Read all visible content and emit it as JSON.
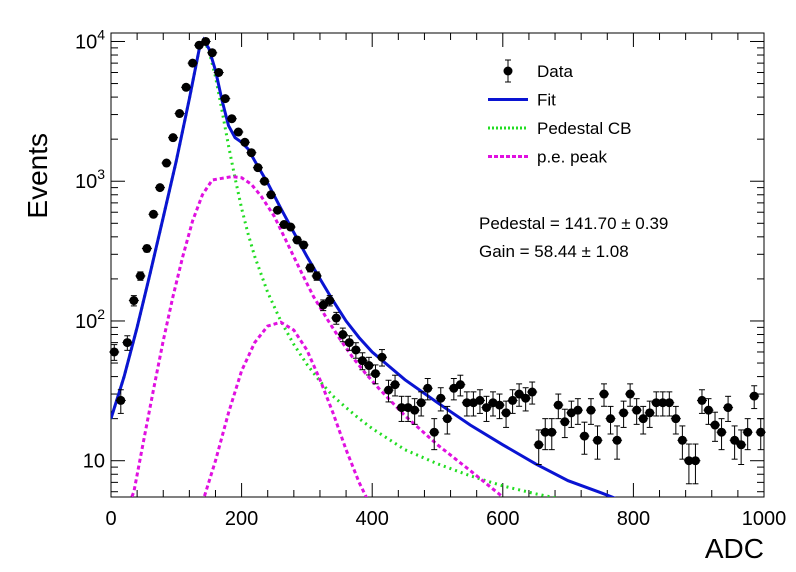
{
  "chart_data": {
    "type": "scatter",
    "title": "",
    "xlabel": "ADC",
    "ylabel": "Events",
    "xlim": [
      0,
      1000
    ],
    "ylim": [
      5.5,
      11500
    ],
    "yscale": "log",
    "grid": false,
    "legend_position": "top-right",
    "x_ticks": [
      "0",
      "200",
      "400",
      "600",
      "800",
      "1000"
    ],
    "y_ticks": [
      {
        "base": "10",
        "exp": ""
      },
      {
        "base": "10",
        "exp": "2"
      },
      {
        "base": "10",
        "exp": "3"
      },
      {
        "base": "10",
        "exp": "4"
      }
    ],
    "legend": [
      {
        "label": "Data",
        "style": "marker",
        "color": "#000000"
      },
      {
        "label": "Fit",
        "style": "line",
        "color": "#0a14d2"
      },
      {
        "label": "Pedestal CB",
        "style": "dotted",
        "color": "#22dd22"
      },
      {
        "label": "p.e. peak",
        "style": "dashed",
        "color": "#e010e0"
      }
    ],
    "annotations": [
      "Pedestal = 141.70 ± 0.39",
      "Gain = 58.44 ± 1.08"
    ],
    "pedestal_mean": 141.7,
    "pedestal_mean_error": 0.39,
    "gain": 58.44,
    "gain_error": 1.08,
    "data": {
      "bin_width": 10,
      "x": [
        5,
        15,
        25,
        35,
        45,
        55,
        65,
        75,
        85,
        95,
        105,
        115,
        125,
        135,
        145,
        155,
        165,
        175,
        185,
        195,
        205,
        215,
        225,
        235,
        245,
        255,
        265,
        275,
        285,
        295,
        305,
        315,
        325,
        335,
        345,
        355,
        365,
        375,
        385,
        395,
        405,
        415,
        425,
        435,
        445,
        455,
        465,
        475,
        485,
        495,
        505,
        515,
        525,
        535,
        545,
        555,
        565,
        575,
        585,
        595,
        605,
        615,
        625,
        635,
        645,
        655,
        665,
        675,
        685,
        695,
        705,
        715,
        725,
        735,
        745,
        755,
        765,
        775,
        785,
        795,
        805,
        815,
        825,
        835,
        845,
        855,
        865,
        875,
        885,
        895,
        905,
        915,
        925,
        935,
        945,
        955,
        965,
        975,
        985,
        995
      ],
      "y": [
        60,
        27,
        70,
        140,
        210,
        330,
        580,
        900,
        1350,
        2050,
        3050,
        4700,
        7000,
        9400,
        10000,
        8300,
        6000,
        3900,
        2800,
        2250,
        1900,
        1600,
        1250,
        1000,
        800,
        620,
        490,
        470,
        380,
        350,
        240,
        210,
        130,
        140,
        105,
        80,
        70,
        62,
        52,
        48,
        42,
        55,
        32,
        35,
        24,
        24,
        23,
        26,
        33,
        16,
        28,
        20,
        33,
        35,
        26,
        26,
        27,
        24,
        26,
        25,
        22,
        27,
        30,
        28,
        31,
        13,
        16,
        16,
        25,
        19,
        22,
        23,
        15,
        23,
        14,
        30,
        20,
        14,
        22,
        30,
        23,
        20,
        22,
        26,
        26,
        26,
        20,
        14,
        10,
        10,
        27,
        23,
        18,
        16,
        24,
        14,
        13,
        16,
        29,
        16
      ]
    },
    "series": [
      {
        "name": "Fit",
        "x": [
          0,
          20,
          40,
          60,
          80,
          100,
          120,
          135,
          142,
          150,
          160,
          170,
          180,
          190,
          200,
          210,
          220,
          240,
          260,
          280,
          300,
          320,
          340,
          360,
          380,
          400,
          450,
          500,
          550,
          600,
          650,
          700,
          750,
          800
        ],
        "y": [
          20,
          40,
          90,
          220,
          550,
          1400,
          3900,
          8800,
          10300,
          8900,
          6200,
          3800,
          2500,
          2050,
          1900,
          1700,
          1400,
          970,
          640,
          430,
          290,
          200,
          140,
          100,
          76,
          60,
          38,
          26,
          18,
          13,
          9.5,
          7.2,
          5.9,
          4.8
        ]
      },
      {
        "name": "Pedestal CB",
        "x": [
          0,
          20,
          40,
          60,
          80,
          100,
          120,
          135,
          142,
          150,
          160,
          170,
          180,
          190,
          200,
          210,
          220,
          240,
          260,
          280,
          300,
          320,
          340,
          360,
          380,
          400,
          450,
          500,
          550,
          600,
          650,
          700,
          750,
          800
        ],
        "y": [
          20,
          40,
          90,
          220,
          550,
          1400,
          3900,
          8800,
          10200,
          8600,
          5600,
          3200,
          1800,
          1050,
          640,
          420,
          290,
          160,
          100,
          68,
          49,
          37,
          29,
          24,
          20,
          17,
          12,
          9.5,
          7.8,
          6.6,
          5.8,
          5.2,
          4.6,
          4.2
        ]
      },
      {
        "name": "p.e. peak",
        "x": [
          20,
          35,
          50,
          65,
          80,
          95,
          110,
          125,
          140,
          155,
          170,
          185,
          200,
          215,
          230,
          250,
          270,
          290,
          310,
          330,
          350,
          370,
          390,
          410,
          450,
          500,
          550,
          600
        ],
        "y": [
          4,
          6,
          14,
          32,
          72,
          150,
          290,
          520,
          800,
          1020,
          1050,
          1080,
          1060,
          950,
          780,
          560,
          360,
          230,
          150,
          105,
          75,
          55,
          42,
          33,
          21,
          13,
          8.5,
          5.5
        ]
      },
      {
        "name": "2 p.e. peak",
        "x": [
          140,
          160,
          180,
          200,
          220,
          240,
          260,
          280,
          300,
          320,
          340,
          360,
          380,
          400
        ],
        "y": [
          5,
          10,
          22,
          44,
          70,
          92,
          98,
          86,
          62,
          38,
          22,
          12,
          7,
          4.5
        ]
      }
    ]
  }
}
